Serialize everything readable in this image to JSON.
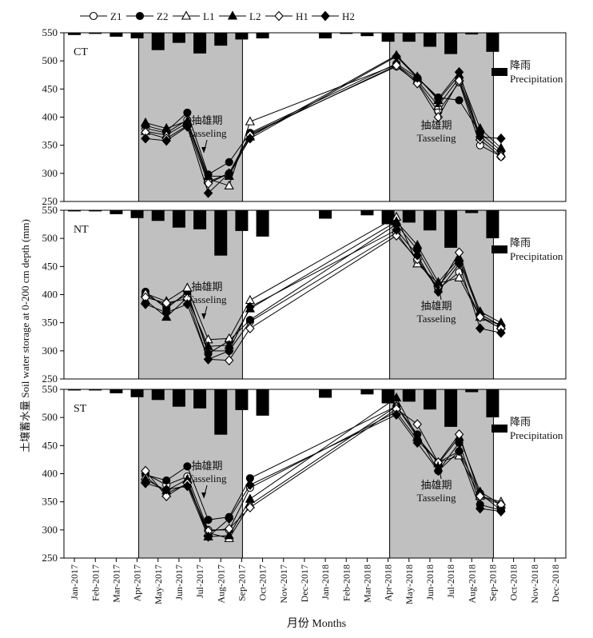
{
  "legend": {
    "entries": [
      {
        "label": "Z1",
        "marker": "circle",
        "fill": "open"
      },
      {
        "label": "Z2",
        "marker": "circle",
        "fill": "filled"
      },
      {
        "label": "L1",
        "marker": "triangle",
        "fill": "open"
      },
      {
        "label": "L2",
        "marker": "triangle",
        "fill": "filled"
      },
      {
        "label": "H1",
        "marker": "diamond",
        "fill": "open"
      },
      {
        "label": "H2",
        "marker": "diamond",
        "fill": "filled"
      }
    ]
  },
  "axes": {
    "ylabel": "土壤蓄水量 Soil water storage at 0-200 cm depth (mm)",
    "xlabel": "月份 Months",
    "x_ticks": [
      "Jan-2017",
      "Feb-2017",
      "Mar-2017",
      "Apr-2017",
      "May-2017",
      "Jun-2017",
      "Jul-2017",
      "Aug-2017",
      "Sep-2017",
      "Oct-2017",
      "Nov-2017",
      "Dec-2017",
      "Jan-2018",
      "Feb-2018",
      "Mar-2018",
      "Apr-2018",
      "May-2018",
      "Jun-2018",
      "Jul-2018",
      "Aug-2018",
      "Sep-2018",
      "Oct-2018",
      "Nov-2018",
      "Dec-2018"
    ],
    "y_ticks": [
      250,
      300,
      350,
      400,
      450,
      500,
      550
    ],
    "ylim": [
      250,
      550
    ]
  },
  "annotations": {
    "tasseling_cn": "抽雄期",
    "tasseling_en": "Tasseling",
    "precip_cn": "降雨",
    "precip_en": "Precipitation"
  },
  "colors": {
    "shade": "#c0c0c0",
    "ink": "#000000",
    "background": "#ffffff"
  },
  "chart_data": [
    {
      "type": "line",
      "panel_label": "CT",
      "x": [
        3.4,
        4.4,
        5.4,
        6.4,
        7.4,
        8.4,
        15.4,
        16.4,
        17.4,
        18.4,
        19.4,
        20.4
      ],
      "series": [
        {
          "name": "Z1",
          "values": [
            380,
            372,
            395,
            285,
            300,
            370,
            490,
            462,
            410,
            462,
            350,
            330
          ]
        },
        {
          "name": "Z2",
          "values": [
            385,
            375,
            408,
            298,
            320,
            372,
            495,
            470,
            435,
            430,
            372,
            340
          ]
        },
        {
          "name": "L1",
          "values": [
            375,
            368,
            390,
            290,
            278,
            392,
            493,
            465,
            420,
            470,
            365,
            335
          ]
        },
        {
          "name": "L2",
          "values": [
            390,
            380,
            393,
            295,
            295,
            365,
            510,
            472,
            430,
            475,
            380,
            345
          ]
        },
        {
          "name": "H1",
          "values": [
            373,
            362,
            385,
            282,
            300,
            368,
            492,
            460,
            400,
            465,
            360,
            330
          ]
        },
        {
          "name": "H2",
          "values": [
            362,
            358,
            383,
            265,
            300,
            362,
            508,
            470,
            433,
            480,
            365,
            362
          ]
        }
      ],
      "precipitation": [
        4,
        2,
        7,
        10,
        31,
        18,
        37,
        23,
        12,
        10,
        0,
        0,
        10,
        2,
        6,
        16,
        16,
        25,
        38,
        3,
        34,
        0,
        0,
        0
      ]
    },
    {
      "type": "line",
      "panel_label": "NT",
      "x": [
        3.4,
        4.4,
        5.4,
        6.4,
        7.4,
        8.4,
        15.4,
        16.4,
        17.4,
        18.4,
        19.4,
        20.4
      ],
      "series": [
        {
          "name": "Z1",
          "values": [
            400,
            380,
            400,
            300,
            300,
            352,
            510,
            460,
            410,
            440,
            360,
            340
          ]
        },
        {
          "name": "Z2",
          "values": [
            405,
            375,
            405,
            295,
            318,
            355,
            525,
            480,
            415,
            460,
            365,
            345
          ]
        },
        {
          "name": "L1",
          "values": [
            402,
            388,
            412,
            320,
            322,
            390,
            538,
            455,
            420,
            430,
            360,
            345
          ]
        },
        {
          "name": "L2",
          "values": [
            390,
            360,
            395,
            308,
            310,
            375,
            530,
            488,
            422,
            465,
            370,
            350
          ]
        },
        {
          "name": "H1",
          "values": [
            395,
            385,
            393,
            285,
            283,
            340,
            505,
            463,
            412,
            475,
            360,
            340
          ]
        },
        {
          "name": "H2",
          "values": [
            383,
            368,
            383,
            285,
            300,
            378,
            515,
            470,
            405,
            455,
            340,
            332
          ]
        }
      ],
      "precipitation": [
        2,
        2,
        7,
        14,
        19,
        31,
        34,
        81,
        37,
        47,
        0,
        0,
        15,
        0,
        9,
        25,
        22,
        36,
        67,
        5,
        50,
        0,
        0,
        0
      ]
    },
    {
      "type": "line",
      "panel_label": "ST",
      "x": [
        3.4,
        4.4,
        5.4,
        6.4,
        7.4,
        8.4,
        15.4,
        16.4,
        17.4,
        18.4,
        19.4,
        20.4
      ],
      "series": [
        {
          "name": "Z1",
          "values": [
            400,
            380,
            395,
            300,
            300,
            375,
            510,
            460,
            420,
            440,
            365,
            335
          ]
        },
        {
          "name": "Z2",
          "values": [
            398,
            388,
            413,
            318,
            323,
            392,
            520,
            470,
            405,
            455,
            345,
            335
          ]
        },
        {
          "name": "L1",
          "values": [
            395,
            365,
            382,
            295,
            285,
            345,
            520,
            465,
            420,
            432,
            360,
            350
          ]
        },
        {
          "name": "L2",
          "values": [
            390,
            370,
            390,
            288,
            290,
            355,
            535,
            465,
            418,
            465,
            368,
            345
          ]
        },
        {
          "name": "H1",
          "values": [
            405,
            360,
            383,
            298,
            302,
            340,
            515,
            488,
            420,
            470,
            360,
            345
          ]
        },
        {
          "name": "H2",
          "values": [
            383,
            372,
            378,
            288,
            320,
            380,
            505,
            455,
            405,
            440,
            338,
            333
          ]
        }
      ],
      "precipitation": [
        2,
        2,
        7,
        14,
        19,
        31,
        34,
        81,
        37,
        47,
        0,
        0,
        15,
        0,
        9,
        25,
        22,
        36,
        67,
        5,
        50,
        0,
        0,
        0
      ]
    }
  ]
}
